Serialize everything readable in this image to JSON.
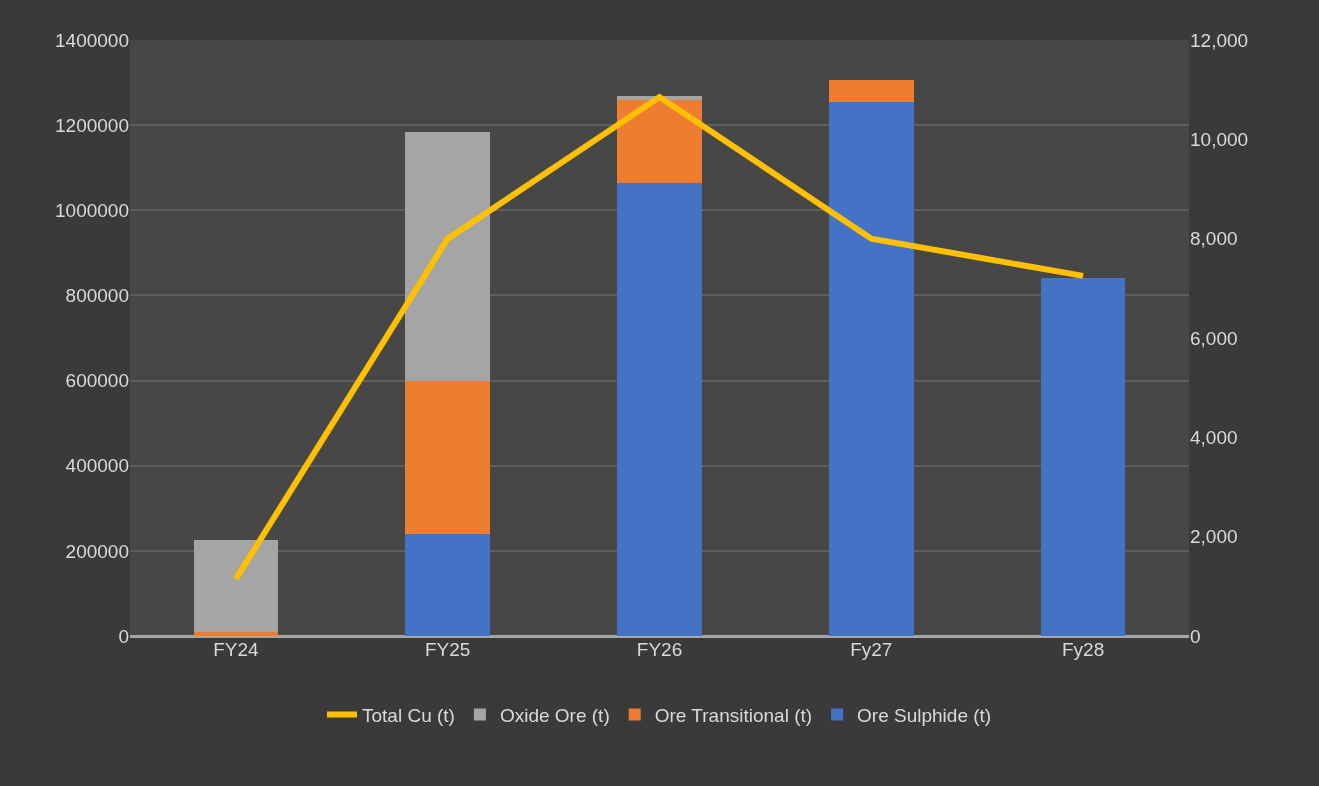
{
  "chart_data": {
    "type": "bar",
    "stacked": true,
    "categories": [
      "FY24",
      "FY25",
      "FY26",
      "Fy27",
      "Fy28"
    ],
    "series": [
      {
        "name": "Ore Sulphide (t)",
        "color": "#4472c4",
        "values": [
          0,
          240000,
          1065000,
          1255000,
          840000
        ]
      },
      {
        "name": "Ore Transitional (t)",
        "color": "#ed7d31",
        "values": [
          10000,
          360000,
          195000,
          50000,
          0
        ]
      },
      {
        "name": "Oxide Ore (t)",
        "color": "#a5a5a5",
        "values": [
          215000,
          585000,
          8000,
          0,
          0
        ]
      },
      {
        "name": "Total Cu (t)",
        "color": "#ffc000",
        "type": "line",
        "axis": "y2",
        "marker": "none",
        "line_style": "solid",
        "values": [
          1150,
          8000,
          10850,
          8000,
          7250
        ]
      }
    ],
    "ylim": [
      0,
      1400000
    ],
    "yticks": [
      0,
      200000,
      400000,
      600000,
      800000,
      1000000,
      1200000,
      1400000
    ],
    "y2lim": [
      0,
      12000
    ],
    "y2ticks": [
      {
        "value": 0,
        "label": "0"
      },
      {
        "value": 2000,
        "label": "2,000"
      },
      {
        "value": 4000,
        "label": "4,000"
      },
      {
        "value": 6000,
        "label": "6,000"
      },
      {
        "value": 8000,
        "label": "8,000"
      },
      {
        "value": 10000,
        "label": "10,000"
      },
      {
        "value": 12000,
        "label": "12,000"
      }
    ],
    "grid": "y",
    "legend": "bottom"
  }
}
